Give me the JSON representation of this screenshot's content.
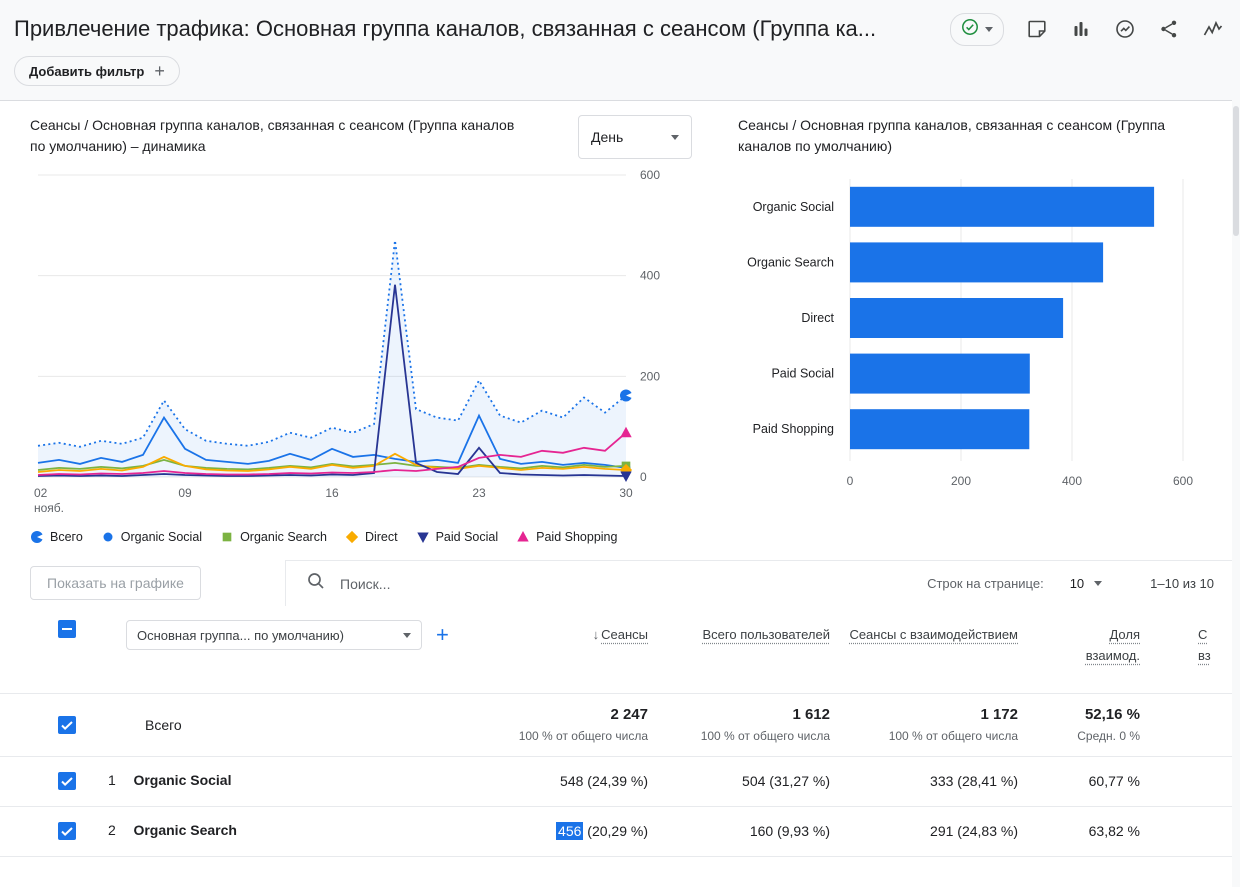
{
  "header": {
    "title": "Привлечение трафика: Основная группа каналов, связанная с сеансом (Группа ка...",
    "add_filter_label": "Добавить фильтр"
  },
  "chart_data": [
    {
      "type": "line",
      "title": "Сеансы / Основная группа каналов, связанная с сеансом (Группа каналов по умолчанию) – динамика",
      "interval": "День",
      "ylim": [
        0,
        600
      ],
      "y_ticks": [
        0,
        200,
        400,
        600
      ],
      "x_ticks": [
        {
          "label": "02",
          "sub": "нояб.",
          "day": 2
        },
        {
          "label": "09",
          "day": 9
        },
        {
          "label": "16",
          "day": 16
        },
        {
          "label": "23",
          "day": 23
        },
        {
          "label": "30",
          "day": 30
        }
      ],
      "series": [
        {
          "name": "Всего",
          "color": "#1a73e8",
          "style": "dotted",
          "marker": "pie",
          "values": [
            62,
            68,
            60,
            72,
            66,
            78,
            152,
            95,
            72,
            66,
            62,
            70,
            88,
            78,
            98,
            88,
            105,
            470,
            135,
            118,
            112,
            192,
            122,
            108,
            132,
            118,
            158,
            128,
            162
          ]
        },
        {
          "name": "Organic Social",
          "color": "#1a73e8",
          "style": "solid",
          "marker": "circle",
          "values": [
            28,
            34,
            26,
            38,
            30,
            44,
            118,
            56,
            34,
            30,
            26,
            32,
            46,
            34,
            56,
            40,
            44,
            36,
            30,
            34,
            28,
            122,
            36,
            26,
            30,
            24,
            28,
            24,
            18
          ]
        },
        {
          "name": "Organic Search",
          "color": "#7cb342",
          "style": "solid",
          "marker": "square",
          "values": [
            14,
            18,
            16,
            20,
            17,
            22,
            34,
            22,
            18,
            16,
            15,
            18,
            22,
            19,
            26,
            21,
            24,
            28,
            22,
            20,
            18,
            24,
            20,
            17,
            22,
            19,
            24,
            20,
            22
          ]
        },
        {
          "name": "Direct",
          "color": "#f9ab00",
          "style": "solid",
          "marker": "diamond",
          "values": [
            10,
            14,
            12,
            16,
            13,
            20,
            40,
            22,
            15,
            13,
            12,
            15,
            20,
            16,
            24,
            18,
            22,
            46,
            24,
            18,
            16,
            22,
            18,
            14,
            18,
            16,
            20,
            16,
            14
          ]
        },
        {
          "name": "Paid Social",
          "color": "#283593",
          "style": "solid",
          "marker": "triangle-down",
          "values": [
            2,
            3,
            2,
            3,
            2,
            4,
            6,
            4,
            3,
            2,
            2,
            3,
            4,
            3,
            5,
            4,
            8,
            382,
            28,
            10,
            6,
            58,
            8,
            5,
            4,
            3,
            4,
            3,
            2
          ]
        },
        {
          "name": "Paid Shopping",
          "color": "#e52592",
          "style": "solid",
          "marker": "triangle-up",
          "values": [
            4,
            6,
            5,
            7,
            6,
            8,
            12,
            8,
            6,
            5,
            5,
            6,
            8,
            7,
            9,
            8,
            10,
            14,
            12,
            16,
            20,
            38,
            44,
            40,
            52,
            48,
            58,
            52,
            88
          ]
        }
      ]
    },
    {
      "type": "bar",
      "title": "Сеансы / Основная группа каналов, связанная с сеансом (Группа каналов по умолчанию)",
      "categories": [
        "Organic Social",
        "Organic Search",
        "Direct",
        "Paid Social",
        "Paid Shopping"
      ],
      "values": [
        548,
        456,
        384,
        324,
        323
      ],
      "bar_color": "#1a73e8",
      "xlim": [
        0,
        600
      ],
      "x_ticks": [
        0,
        200,
        400,
        600
      ]
    }
  ],
  "table": {
    "controls": {
      "show_on_chart": "Показать на графике",
      "search_placeholder": "Поиск...",
      "rows_per_page_label": "Строк на странице:",
      "rows_per_page_value": "10",
      "pagination": "1–10 из 10"
    },
    "dimension_selector": "Основная группа... по умолчанию)",
    "columns": {
      "sessions": "Сеансы",
      "users": "Всего пользователей",
      "engaged": "Сеансы с взаимодействием",
      "rate": "Доля взаимод.",
      "cut_line1": "С",
      "cut_line2": "вз"
    },
    "totals": {
      "label": "Всего",
      "sessions": {
        "value": "2 247",
        "sub": "100 % от общего числа"
      },
      "users": {
        "value": "1 612",
        "sub": "100 % от общего числа"
      },
      "engaged": {
        "value": "1 172",
        "sub": "100 % от общего числа"
      },
      "rate": {
        "value": "52,16 %",
        "sub": "Средн. 0 %"
      }
    },
    "rows": [
      {
        "index": "1",
        "channel": "Organic Social",
        "sessions": "548 (24,39 %)",
        "users": "504 (31,27 %)",
        "engaged": "333 (28,41 %)",
        "rate": "60,77 %"
      },
      {
        "index": "2",
        "channel": "Organic Search",
        "sessions_highlight": "456",
        "sessions_rest": " (20,29 %)",
        "users": "160 (9,93 %)",
        "engaged": "291 (24,83 %)",
        "rate": "63,82 %"
      }
    ]
  }
}
